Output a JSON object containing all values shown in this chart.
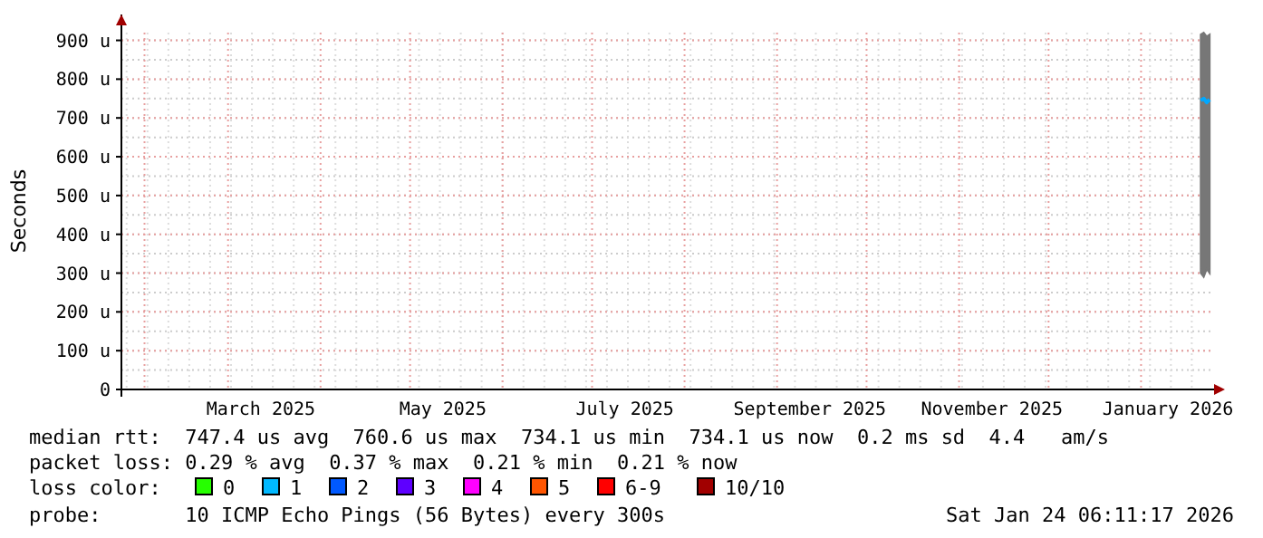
{
  "chart_data": {
    "type": "line",
    "ylabel": "Seconds",
    "x": [
      "2026-01-21",
      "2026-01-22",
      "2026-01-23",
      "2026-01-24"
    ],
    "series": [
      {
        "color": "#00a8ff",
        "values": [
          745,
          750,
          740,
          747
        ],
        "lower": [
          300,
          290,
          310,
          300
        ],
        "upper": [
          915,
          920,
          910,
          915
        ]
      }
    ],
    "xlim": [
      "2025-01-24T06:11",
      "2026-01-24T06:11"
    ],
    "xticks": [
      {
        "value": "2025-03-12",
        "label": "March 2025"
      },
      {
        "value": "2025-05-12",
        "label": "May 2025"
      },
      {
        "value": "2025-07-12",
        "label": "July 2025"
      },
      {
        "value": "2025-09-12",
        "label": "September 2025"
      },
      {
        "value": "2025-11-12",
        "label": "November 2025"
      },
      {
        "value": "2026-01-10",
        "label": "January 2026"
      }
    ],
    "ylim": [
      0,
      920
    ],
    "yticks": [
      {
        "value": 0,
        "label": "0"
      },
      {
        "value": 100,
        "label": "100 u"
      },
      {
        "value": 200,
        "label": "200 u"
      },
      {
        "value": 300,
        "label": "300 u"
      },
      {
        "value": 400,
        "label": "400 u"
      },
      {
        "value": 500,
        "label": "500 u"
      },
      {
        "value": 600,
        "label": "600 u"
      },
      {
        "value": 700,
        "label": "700 u"
      },
      {
        "value": 800,
        "label": "800 u"
      },
      {
        "value": 900,
        "label": "900 u"
      }
    ],
    "grid": true,
    "marker": "none",
    "line_style": "solid",
    "annotations": [
      "median rtt:  747.4 us avg  760.6 us max  734.1 us min  734.1 us now  0.2 ms sd  4.4   am/s",
      "packet loss: 0.29 % avg  0.37 % max  0.21 % min  0.21 % now",
      "loss color:",
      "0",
      "1",
      "2",
      "3",
      "4",
      "5",
      "6-9",
      "10/10",
      "probe:       10 ICMP Echo Pings (56 Bytes) every 300s",
      "Sat Jan 24 06:11:17 2026"
    ]
  }
}
